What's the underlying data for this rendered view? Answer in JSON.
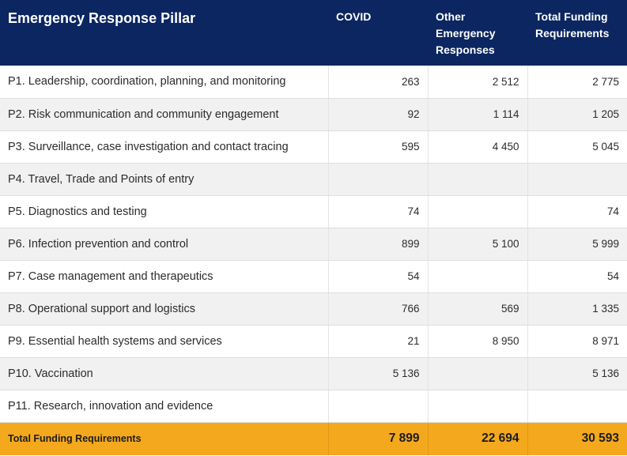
{
  "headers": [
    "Emergency Response Pillar",
    "COVID",
    "Other Emergency Responses",
    "Total Funding Requirements"
  ],
  "rows": [
    {
      "pillar": "P1. Leadership, coordination, planning, and monitoring",
      "covid": "263",
      "other": "2 512",
      "total": "2 775"
    },
    {
      "pillar": "P2. Risk communication and community engagement",
      "covid": "92",
      "other": "1 114",
      "total": "1 205"
    },
    {
      "pillar": "P3. Surveillance, case investigation and contact tracing",
      "covid": "595",
      "other": "4 450",
      "total": "5 045"
    },
    {
      "pillar": "P4. Travel, Trade and Points of entry",
      "covid": "",
      "other": "",
      "total": ""
    },
    {
      "pillar": "P5. Diagnostics and testing",
      "covid": "74",
      "other": "",
      "total": "74"
    },
    {
      "pillar": "P6. Infection prevention and control",
      "covid": "899",
      "other": "5 100",
      "total": "5 999"
    },
    {
      "pillar": "P7. Case management and therapeutics",
      "covid": "54",
      "other": "",
      "total": "54"
    },
    {
      "pillar": "P8. Operational support and logistics",
      "covid": "766",
      "other": "569",
      "total": "1 335"
    },
    {
      "pillar": "P9. Essential health systems and services",
      "covid": "21",
      "other": "8 950",
      "total": "8 971"
    },
    {
      "pillar": "P10. Vaccination",
      "covid": "5 136",
      "other": "",
      "total": "5 136"
    },
    {
      "pillar": "P11. Research, innovation and evidence",
      "covid": "",
      "other": "",
      "total": ""
    }
  ],
  "footer": {
    "label": "Total Funding Requirements",
    "covid": "7 899",
    "other": "22 694",
    "total": "30 593"
  },
  "colors": {
    "header_bg": "#0b2660",
    "footer_bg": "#f4a81d",
    "stripe_bg": "#f1f1f1"
  }
}
